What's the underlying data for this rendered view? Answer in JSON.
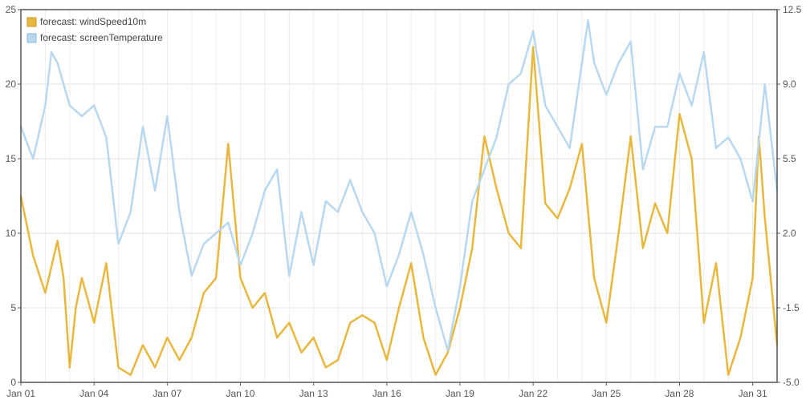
{
  "chart_data": {
    "type": "line",
    "grid": true,
    "legend_position": "top-left",
    "x_axis": {
      "type": "date",
      "range": [
        "2025-01-01",
        "2025-02-01"
      ],
      "tick_labels": [
        "Jan 01",
        "Jan 04",
        "Jan 07",
        "Jan 10",
        "Jan 13",
        "Jan 16",
        "Jan 19",
        "Jan 22",
        "Jan 25",
        "Jan 28",
        "Jan 31"
      ]
    },
    "y_left": {
      "range": [
        0,
        25
      ],
      "ticks": [
        "0",
        "5",
        "10",
        "15",
        "20",
        "25"
      ]
    },
    "y_right": {
      "range": [
        -5.0,
        12.5
      ],
      "ticks": [
        "-5.0",
        "-1.5",
        "2.0",
        "5.5",
        "9.0",
        "12.5"
      ]
    },
    "series": [
      {
        "name": "forecast: windSpeed10m",
        "axis": "left",
        "color": "#e8b83e",
        "points": [
          [
            "2025-01-01T00:00",
            12.5
          ],
          [
            "2025-01-01T12:00",
            8.5
          ],
          [
            "2025-01-02T00:00",
            6.0
          ],
          [
            "2025-01-02T12:00",
            9.5
          ],
          [
            "2025-01-02T18:00",
            7.0
          ],
          [
            "2025-01-03T00:00",
            1.0
          ],
          [
            "2025-01-03T06:00",
            5.0
          ],
          [
            "2025-01-03T12:00",
            7.0
          ],
          [
            "2025-01-04T00:00",
            4.0
          ],
          [
            "2025-01-04T12:00",
            8.0
          ],
          [
            "2025-01-05T00:00",
            1.0
          ],
          [
            "2025-01-05T12:00",
            0.5
          ],
          [
            "2025-01-06T00:00",
            2.5
          ],
          [
            "2025-01-06T12:00",
            1.0
          ],
          [
            "2025-01-07T00:00",
            3.0
          ],
          [
            "2025-01-07T12:00",
            1.5
          ],
          [
            "2025-01-08T00:00",
            3.0
          ],
          [
            "2025-01-08T12:00",
            6.0
          ],
          [
            "2025-01-09T00:00",
            7.0
          ],
          [
            "2025-01-09T12:00",
            16.0
          ],
          [
            "2025-01-10T00:00",
            7.0
          ],
          [
            "2025-01-10T12:00",
            5.0
          ],
          [
            "2025-01-11T00:00",
            6.0
          ],
          [
            "2025-01-11T12:00",
            3.0
          ],
          [
            "2025-01-12T00:00",
            4.0
          ],
          [
            "2025-01-12T12:00",
            2.0
          ],
          [
            "2025-01-13T00:00",
            3.0
          ],
          [
            "2025-01-13T12:00",
            1.0
          ],
          [
            "2025-01-14T00:00",
            1.5
          ],
          [
            "2025-01-14T12:00",
            4.0
          ],
          [
            "2025-01-15T00:00",
            4.5
          ],
          [
            "2025-01-15T12:00",
            4.0
          ],
          [
            "2025-01-16T00:00",
            1.5
          ],
          [
            "2025-01-16T12:00",
            5.0
          ],
          [
            "2025-01-17T00:00",
            8.0
          ],
          [
            "2025-01-17T12:00",
            3.0
          ],
          [
            "2025-01-18T00:00",
            0.5
          ],
          [
            "2025-01-18T12:00",
            2.0
          ],
          [
            "2025-01-19T00:00",
            5.0
          ],
          [
            "2025-01-19T12:00",
            9.0
          ],
          [
            "2025-01-20T00:00",
            16.5
          ],
          [
            "2025-01-20T12:00",
            13.0
          ],
          [
            "2025-01-21T00:00",
            10.0
          ],
          [
            "2025-01-21T12:00",
            9.0
          ],
          [
            "2025-01-22T00:00",
            22.5
          ],
          [
            "2025-01-22T12:00",
            12.0
          ],
          [
            "2025-01-23T00:00",
            11.0
          ],
          [
            "2025-01-23T12:00",
            13.0
          ],
          [
            "2025-01-24T00:00",
            16.0
          ],
          [
            "2025-01-24T12:00",
            7.0
          ],
          [
            "2025-01-25T00:00",
            4.0
          ],
          [
            "2025-01-25T12:00",
            10.0
          ],
          [
            "2025-01-26T00:00",
            16.5
          ],
          [
            "2025-01-26T12:00",
            9.0
          ],
          [
            "2025-01-27T00:00",
            12.0
          ],
          [
            "2025-01-27T12:00",
            10.0
          ],
          [
            "2025-01-28T00:00",
            18.0
          ],
          [
            "2025-01-28T12:00",
            15.0
          ],
          [
            "2025-01-29T00:00",
            4.0
          ],
          [
            "2025-01-29T12:00",
            8.0
          ],
          [
            "2025-01-30T00:00",
            0.5
          ],
          [
            "2025-01-30T12:00",
            3.0
          ],
          [
            "2025-01-31T00:00",
            7.0
          ],
          [
            "2025-01-31T06:00",
            16.5
          ],
          [
            "2025-01-31T12:00",
            11.0
          ],
          [
            "2025-02-01T00:00",
            2.5
          ]
        ]
      },
      {
        "name": "forecast: screenTemperature",
        "axis": "right",
        "color": "#b8d8f0",
        "points": [
          [
            "2025-01-01T00:00",
            7.0
          ],
          [
            "2025-01-01T12:00",
            5.5
          ],
          [
            "2025-01-02T00:00",
            8.0
          ],
          [
            "2025-01-02T06:00",
            10.5
          ],
          [
            "2025-01-02T12:00",
            10.0
          ],
          [
            "2025-01-03T00:00",
            8.0
          ],
          [
            "2025-01-03T12:00",
            7.5
          ],
          [
            "2025-01-04T00:00",
            8.0
          ],
          [
            "2025-01-04T12:00",
            6.5
          ],
          [
            "2025-01-05T00:00",
            1.5
          ],
          [
            "2025-01-05T12:00",
            3.0
          ],
          [
            "2025-01-06T00:00",
            7.0
          ],
          [
            "2025-01-06T12:00",
            4.0
          ],
          [
            "2025-01-07T00:00",
            7.5
          ],
          [
            "2025-01-07T12:00",
            3.0
          ],
          [
            "2025-01-08T00:00",
            0.0
          ],
          [
            "2025-01-08T12:00",
            1.5
          ],
          [
            "2025-01-09T00:00",
            2.0
          ],
          [
            "2025-01-09T12:00",
            2.5
          ],
          [
            "2025-01-10T00:00",
            0.5
          ],
          [
            "2025-01-10T12:00",
            2.0
          ],
          [
            "2025-01-11T00:00",
            4.0
          ],
          [
            "2025-01-11T12:00",
            5.0
          ],
          [
            "2025-01-12T00:00",
            0.0
          ],
          [
            "2025-01-12T12:00",
            3.0
          ],
          [
            "2025-01-13T00:00",
            0.5
          ],
          [
            "2025-01-13T12:00",
            3.5
          ],
          [
            "2025-01-14T00:00",
            3.0
          ],
          [
            "2025-01-14T12:00",
            4.5
          ],
          [
            "2025-01-15T00:00",
            3.0
          ],
          [
            "2025-01-15T12:00",
            2.0
          ],
          [
            "2025-01-16T00:00",
            -0.5
          ],
          [
            "2025-01-16T12:00",
            1.0
          ],
          [
            "2025-01-17T00:00",
            3.0
          ],
          [
            "2025-01-17T12:00",
            1.0
          ],
          [
            "2025-01-18T00:00",
            -1.5
          ],
          [
            "2025-01-18T12:00",
            -3.5
          ],
          [
            "2025-01-19T00:00",
            -0.5
          ],
          [
            "2025-01-19T12:00",
            3.5
          ],
          [
            "2025-01-20T00:00",
            5.0
          ],
          [
            "2025-01-20T12:00",
            6.5
          ],
          [
            "2025-01-21T00:00",
            9.0
          ],
          [
            "2025-01-21T12:00",
            9.5
          ],
          [
            "2025-01-22T00:00",
            11.5
          ],
          [
            "2025-01-22T12:00",
            8.0
          ],
          [
            "2025-01-23T00:00",
            7.0
          ],
          [
            "2025-01-23T12:00",
            6.0
          ],
          [
            "2025-01-24T00:00",
            10.0
          ],
          [
            "2025-01-24T06:00",
            12.0
          ],
          [
            "2025-01-24T12:00",
            10.0
          ],
          [
            "2025-01-25T00:00",
            8.5
          ],
          [
            "2025-01-25T12:00",
            10.0
          ],
          [
            "2025-01-26T00:00",
            11.0
          ],
          [
            "2025-01-26T12:00",
            5.0
          ],
          [
            "2025-01-27T00:00",
            7.0
          ],
          [
            "2025-01-27T12:00",
            7.0
          ],
          [
            "2025-01-28T00:00",
            9.5
          ],
          [
            "2025-01-28T12:00",
            8.0
          ],
          [
            "2025-01-29T00:00",
            10.5
          ],
          [
            "2025-01-29T12:00",
            6.0
          ],
          [
            "2025-01-30T00:00",
            6.5
          ],
          [
            "2025-01-30T12:00",
            5.5
          ],
          [
            "2025-01-31T00:00",
            3.5
          ],
          [
            "2025-01-31T12:00",
            9.0
          ],
          [
            "2025-02-01T00:00",
            4.0
          ]
        ]
      }
    ]
  }
}
